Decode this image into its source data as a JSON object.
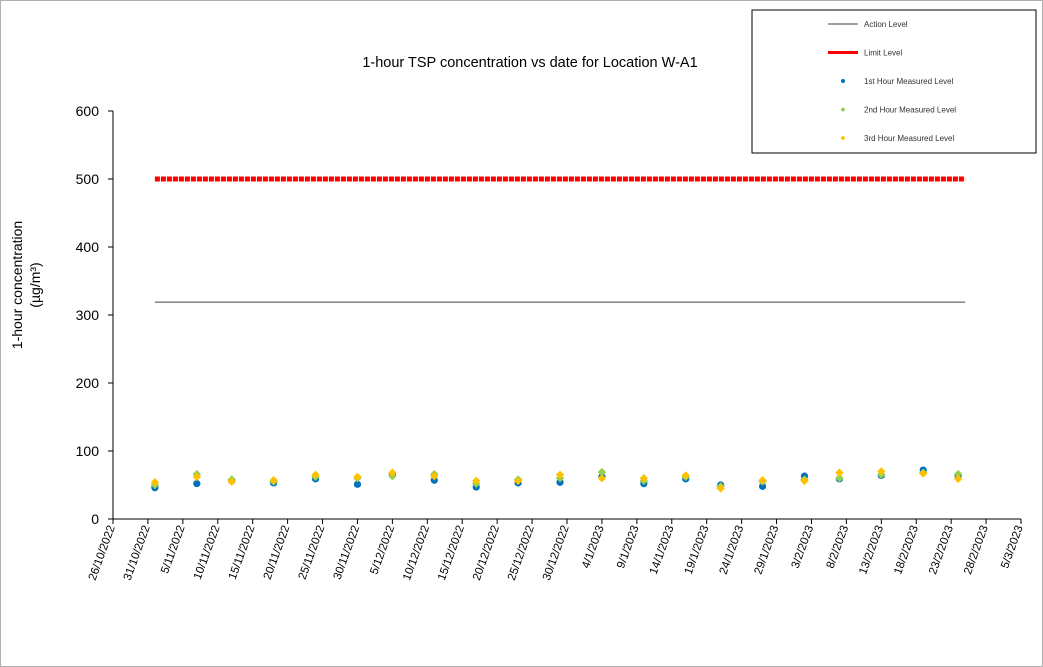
{
  "chart_data": {
    "type": "scatter",
    "title": "1-hour TSP concentration vs date for Location W-A1",
    "ylabel_line1": "1-hour concentration",
    "ylabel_line2": "(µg/m³)",
    "xlabel": "",
    "ylim": [
      0,
      600
    ],
    "y_ticks": [
      "0",
      "100",
      "200",
      "300",
      "400",
      "500",
      "600"
    ],
    "x_ticks": [
      "26/10/2022",
      "31/10/2022",
      "5/11/2022",
      "10/11/2022",
      "15/11/2022",
      "20/11/2022",
      "25/11/2022",
      "30/11/2022",
      "5/12/2022",
      "10/12/2022",
      "15/12/2022",
      "20/12/2022",
      "25/12/2022",
      "30/12/2022",
      "4/1/2023",
      "9/1/2023",
      "14/1/2023",
      "19/1/2023",
      "24/1/2023",
      "29/1/2023",
      "3/2/2023",
      "8/2/2023",
      "13/2/2023",
      "18/2/2023",
      "23/2/2023",
      "28/2/2023",
      "5/3/2023"
    ],
    "x_start_date": "2022-10-26",
    "x_end_date": "2023-03-05",
    "grid": false,
    "legend_position": "top-right",
    "reference_lines": [
      {
        "name": "Action Level",
        "value": 319,
        "from": "2022-11-01",
        "to": "2023-02-25",
        "color": "#404040"
      },
      {
        "name": "Limit Level",
        "value": 500,
        "from": "2022-11-01",
        "to": "2023-02-25",
        "color": "#ff0000"
      }
    ],
    "x": [
      "2022-11-01",
      "2022-11-07",
      "2022-11-12",
      "2022-11-18",
      "2022-11-24",
      "2022-11-30",
      "2022-12-05",
      "2022-12-11",
      "2022-12-17",
      "2022-12-23",
      "2022-12-29",
      "2023-01-04",
      "2023-01-10",
      "2023-01-16",
      "2023-01-21",
      "2023-01-27",
      "2023-02-02",
      "2023-02-07",
      "2023-02-13",
      "2023-02-19",
      "2023-02-24"
    ],
    "series": [
      {
        "name": "1st Hour Measured Level",
        "color": "#0070c0",
        "values": [
          46,
          52,
          56,
          53,
          59,
          51,
          65,
          57,
          47,
          53,
          54,
          62,
          52,
          59,
          50,
          48,
          63,
          59,
          64,
          72,
          64
        ]
      },
      {
        "name": "2nd Hour Measured Level",
        "color": "#92d050",
        "values": [
          50,
          66,
          58,
          55,
          62,
          60,
          63,
          66,
          52,
          58,
          60,
          69,
          56,
          62,
          48,
          55,
          58,
          60,
          65,
          68,
          66
        ]
      },
      {
        "name": "3rd Hour Measured Level",
        "color": "#ffc000",
        "values": [
          54,
          62,
          55,
          57,
          65,
          62,
          68,
          63,
          56,
          56,
          65,
          60,
          60,
          64,
          45,
          57,
          56,
          68,
          70,
          67,
          59
        ]
      }
    ]
  }
}
